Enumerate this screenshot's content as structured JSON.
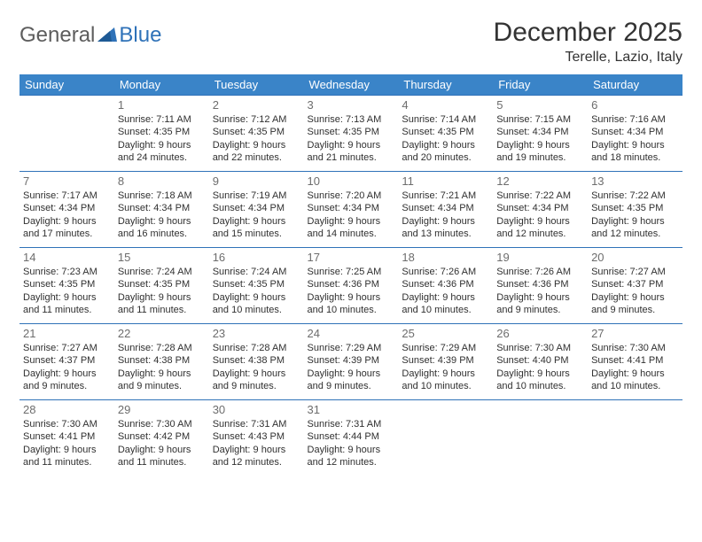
{
  "logo": {
    "part1": "General",
    "part2": "Blue"
  },
  "title": "December 2025",
  "location": "Terelle, Lazio, Italy",
  "colors": {
    "header_bg": "#3a84c8",
    "header_text": "#ffffff",
    "border": "#2f72b8",
    "daynum": "#6d6d6d",
    "body_text": "#303030",
    "logo_gray": "#5d5d5d",
    "logo_blue": "#2f72b8",
    "title_color": "#333333"
  },
  "weekdays": [
    "Sunday",
    "Monday",
    "Tuesday",
    "Wednesday",
    "Thursday",
    "Friday",
    "Saturday"
  ],
  "weeks": [
    [
      null,
      {
        "n": "1",
        "sr": "Sunrise: 7:11 AM",
        "ss": "Sunset: 4:35 PM",
        "d1": "Daylight: 9 hours",
        "d2": "and 24 minutes."
      },
      {
        "n": "2",
        "sr": "Sunrise: 7:12 AM",
        "ss": "Sunset: 4:35 PM",
        "d1": "Daylight: 9 hours",
        "d2": "and 22 minutes."
      },
      {
        "n": "3",
        "sr": "Sunrise: 7:13 AM",
        "ss": "Sunset: 4:35 PM",
        "d1": "Daylight: 9 hours",
        "d2": "and 21 minutes."
      },
      {
        "n": "4",
        "sr": "Sunrise: 7:14 AM",
        "ss": "Sunset: 4:35 PM",
        "d1": "Daylight: 9 hours",
        "d2": "and 20 minutes."
      },
      {
        "n": "5",
        "sr": "Sunrise: 7:15 AM",
        "ss": "Sunset: 4:34 PM",
        "d1": "Daylight: 9 hours",
        "d2": "and 19 minutes."
      },
      {
        "n": "6",
        "sr": "Sunrise: 7:16 AM",
        "ss": "Sunset: 4:34 PM",
        "d1": "Daylight: 9 hours",
        "d2": "and 18 minutes."
      }
    ],
    [
      {
        "n": "7",
        "sr": "Sunrise: 7:17 AM",
        "ss": "Sunset: 4:34 PM",
        "d1": "Daylight: 9 hours",
        "d2": "and 17 minutes."
      },
      {
        "n": "8",
        "sr": "Sunrise: 7:18 AM",
        "ss": "Sunset: 4:34 PM",
        "d1": "Daylight: 9 hours",
        "d2": "and 16 minutes."
      },
      {
        "n": "9",
        "sr": "Sunrise: 7:19 AM",
        "ss": "Sunset: 4:34 PM",
        "d1": "Daylight: 9 hours",
        "d2": "and 15 minutes."
      },
      {
        "n": "10",
        "sr": "Sunrise: 7:20 AM",
        "ss": "Sunset: 4:34 PM",
        "d1": "Daylight: 9 hours",
        "d2": "and 14 minutes."
      },
      {
        "n": "11",
        "sr": "Sunrise: 7:21 AM",
        "ss": "Sunset: 4:34 PM",
        "d1": "Daylight: 9 hours",
        "d2": "and 13 minutes."
      },
      {
        "n": "12",
        "sr": "Sunrise: 7:22 AM",
        "ss": "Sunset: 4:34 PM",
        "d1": "Daylight: 9 hours",
        "d2": "and 12 minutes."
      },
      {
        "n": "13",
        "sr": "Sunrise: 7:22 AM",
        "ss": "Sunset: 4:35 PM",
        "d1": "Daylight: 9 hours",
        "d2": "and 12 minutes."
      }
    ],
    [
      {
        "n": "14",
        "sr": "Sunrise: 7:23 AM",
        "ss": "Sunset: 4:35 PM",
        "d1": "Daylight: 9 hours",
        "d2": "and 11 minutes."
      },
      {
        "n": "15",
        "sr": "Sunrise: 7:24 AM",
        "ss": "Sunset: 4:35 PM",
        "d1": "Daylight: 9 hours",
        "d2": "and 11 minutes."
      },
      {
        "n": "16",
        "sr": "Sunrise: 7:24 AM",
        "ss": "Sunset: 4:35 PM",
        "d1": "Daylight: 9 hours",
        "d2": "and 10 minutes."
      },
      {
        "n": "17",
        "sr": "Sunrise: 7:25 AM",
        "ss": "Sunset: 4:36 PM",
        "d1": "Daylight: 9 hours",
        "d2": "and 10 minutes."
      },
      {
        "n": "18",
        "sr": "Sunrise: 7:26 AM",
        "ss": "Sunset: 4:36 PM",
        "d1": "Daylight: 9 hours",
        "d2": "and 10 minutes."
      },
      {
        "n": "19",
        "sr": "Sunrise: 7:26 AM",
        "ss": "Sunset: 4:36 PM",
        "d1": "Daylight: 9 hours",
        "d2": "and 9 minutes."
      },
      {
        "n": "20",
        "sr": "Sunrise: 7:27 AM",
        "ss": "Sunset: 4:37 PM",
        "d1": "Daylight: 9 hours",
        "d2": "and 9 minutes."
      }
    ],
    [
      {
        "n": "21",
        "sr": "Sunrise: 7:27 AM",
        "ss": "Sunset: 4:37 PM",
        "d1": "Daylight: 9 hours",
        "d2": "and 9 minutes."
      },
      {
        "n": "22",
        "sr": "Sunrise: 7:28 AM",
        "ss": "Sunset: 4:38 PM",
        "d1": "Daylight: 9 hours",
        "d2": "and 9 minutes."
      },
      {
        "n": "23",
        "sr": "Sunrise: 7:28 AM",
        "ss": "Sunset: 4:38 PM",
        "d1": "Daylight: 9 hours",
        "d2": "and 9 minutes."
      },
      {
        "n": "24",
        "sr": "Sunrise: 7:29 AM",
        "ss": "Sunset: 4:39 PM",
        "d1": "Daylight: 9 hours",
        "d2": "and 9 minutes."
      },
      {
        "n": "25",
        "sr": "Sunrise: 7:29 AM",
        "ss": "Sunset: 4:39 PM",
        "d1": "Daylight: 9 hours",
        "d2": "and 10 minutes."
      },
      {
        "n": "26",
        "sr": "Sunrise: 7:30 AM",
        "ss": "Sunset: 4:40 PM",
        "d1": "Daylight: 9 hours",
        "d2": "and 10 minutes."
      },
      {
        "n": "27",
        "sr": "Sunrise: 7:30 AM",
        "ss": "Sunset: 4:41 PM",
        "d1": "Daylight: 9 hours",
        "d2": "and 10 minutes."
      }
    ],
    [
      {
        "n": "28",
        "sr": "Sunrise: 7:30 AM",
        "ss": "Sunset: 4:41 PM",
        "d1": "Daylight: 9 hours",
        "d2": "and 11 minutes."
      },
      {
        "n": "29",
        "sr": "Sunrise: 7:30 AM",
        "ss": "Sunset: 4:42 PM",
        "d1": "Daylight: 9 hours",
        "d2": "and 11 minutes."
      },
      {
        "n": "30",
        "sr": "Sunrise: 7:31 AM",
        "ss": "Sunset: 4:43 PM",
        "d1": "Daylight: 9 hours",
        "d2": "and 12 minutes."
      },
      {
        "n": "31",
        "sr": "Sunrise: 7:31 AM",
        "ss": "Sunset: 4:44 PM",
        "d1": "Daylight: 9 hours",
        "d2": "and 12 minutes."
      },
      null,
      null,
      null
    ]
  ]
}
